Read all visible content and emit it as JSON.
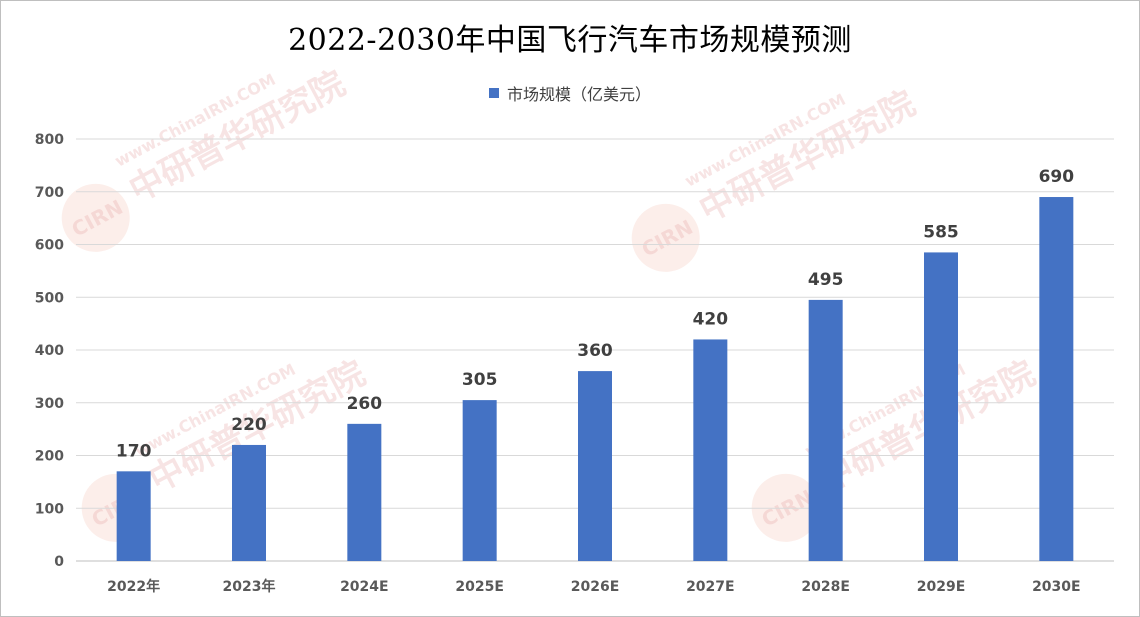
{
  "chart_data": {
    "type": "bar",
    "title": "2022-2030年中国飞行汽车市场规模预测",
    "categories": [
      "2022年",
      "2023年",
      "2024E",
      "2025E",
      "2026E",
      "2027E",
      "2028E",
      "2029E",
      "2030E"
    ],
    "series": [
      {
        "name": "市场规模（亿美元）",
        "values": [
          170,
          220,
          260,
          305,
          360,
          420,
          495,
          585,
          690
        ],
        "color": "#4472c4"
      }
    ],
    "ylim": [
      0,
      800
    ],
    "yticks": [
      0,
      100,
      200,
      300,
      400,
      500,
      600,
      700,
      800
    ],
    "grid": true,
    "legend_position": "top-center",
    "data_labels": true
  },
  "watermark": {
    "url_text": "www.ChinaIRN.COM",
    "org_text": "中研普华研究院",
    "logo_text": "CIRN"
  }
}
